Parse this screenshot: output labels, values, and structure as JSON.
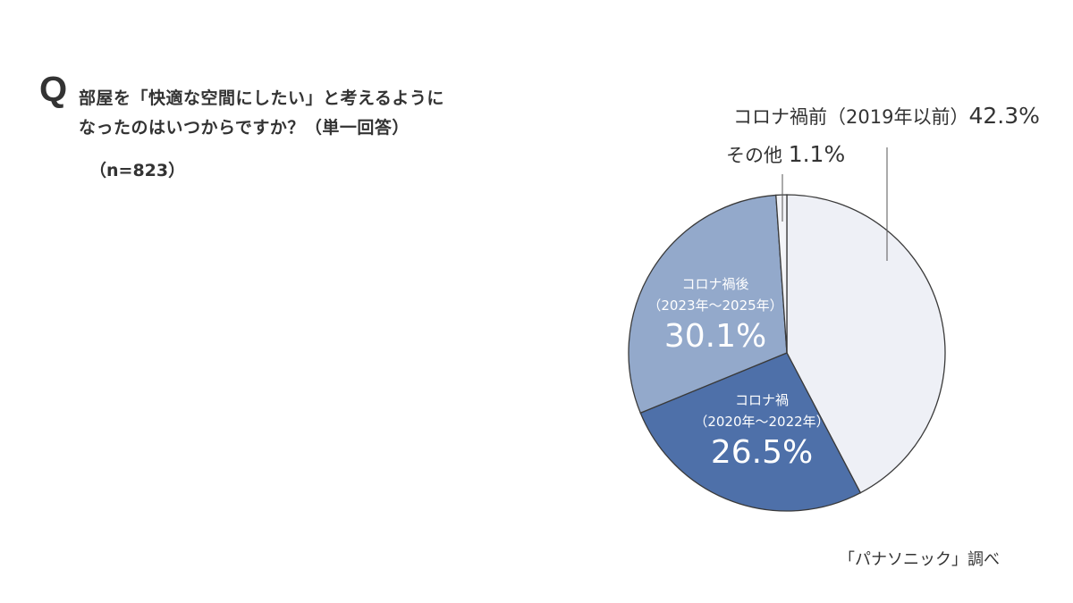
{
  "question": {
    "mark": "Q",
    "line1": "部屋を「快適な空間にしたい」と考えるように",
    "line2": "なったのはいつからですか？（単一回答）",
    "sample": "（n=823）"
  },
  "labels": {
    "before": {
      "name": "コロナ禍前（2019年以前）",
      "pct": "42.3%"
    },
    "other": {
      "name": "その他",
      "pct": "1.1%"
    },
    "after": {
      "name": "コロナ禍後",
      "range": "（2023年～2025年）",
      "pct": "30.1%"
    },
    "during": {
      "name": "コロナ禍",
      "range": "（2020年～2022年）",
      "pct": "26.5%"
    }
  },
  "source": "「パナソニック」調べ",
  "colors": {
    "before": "#eef0f6",
    "during": "#4e70a9",
    "after": "#93a9cb",
    "other": "#f3f4f8",
    "stroke": "#3a3a3a"
  },
  "chart_data": {
    "type": "pie",
    "title": "部屋を「快適な空間にしたい」と考えるようになったのはいつからですか？（単一回答）（n=823）",
    "categories": [
      "コロナ禍前（2019年以前）",
      "コロナ禍（2020年～2022年）",
      "コロナ禍後（2023年～2025年）",
      "その他"
    ],
    "values": [
      42.3,
      26.5,
      30.1,
      1.1
    ],
    "unit": "%",
    "start_angle": "12 o'clock, clockwise",
    "legend": "none (direct labels)",
    "source": "「パナソニック」調べ"
  }
}
